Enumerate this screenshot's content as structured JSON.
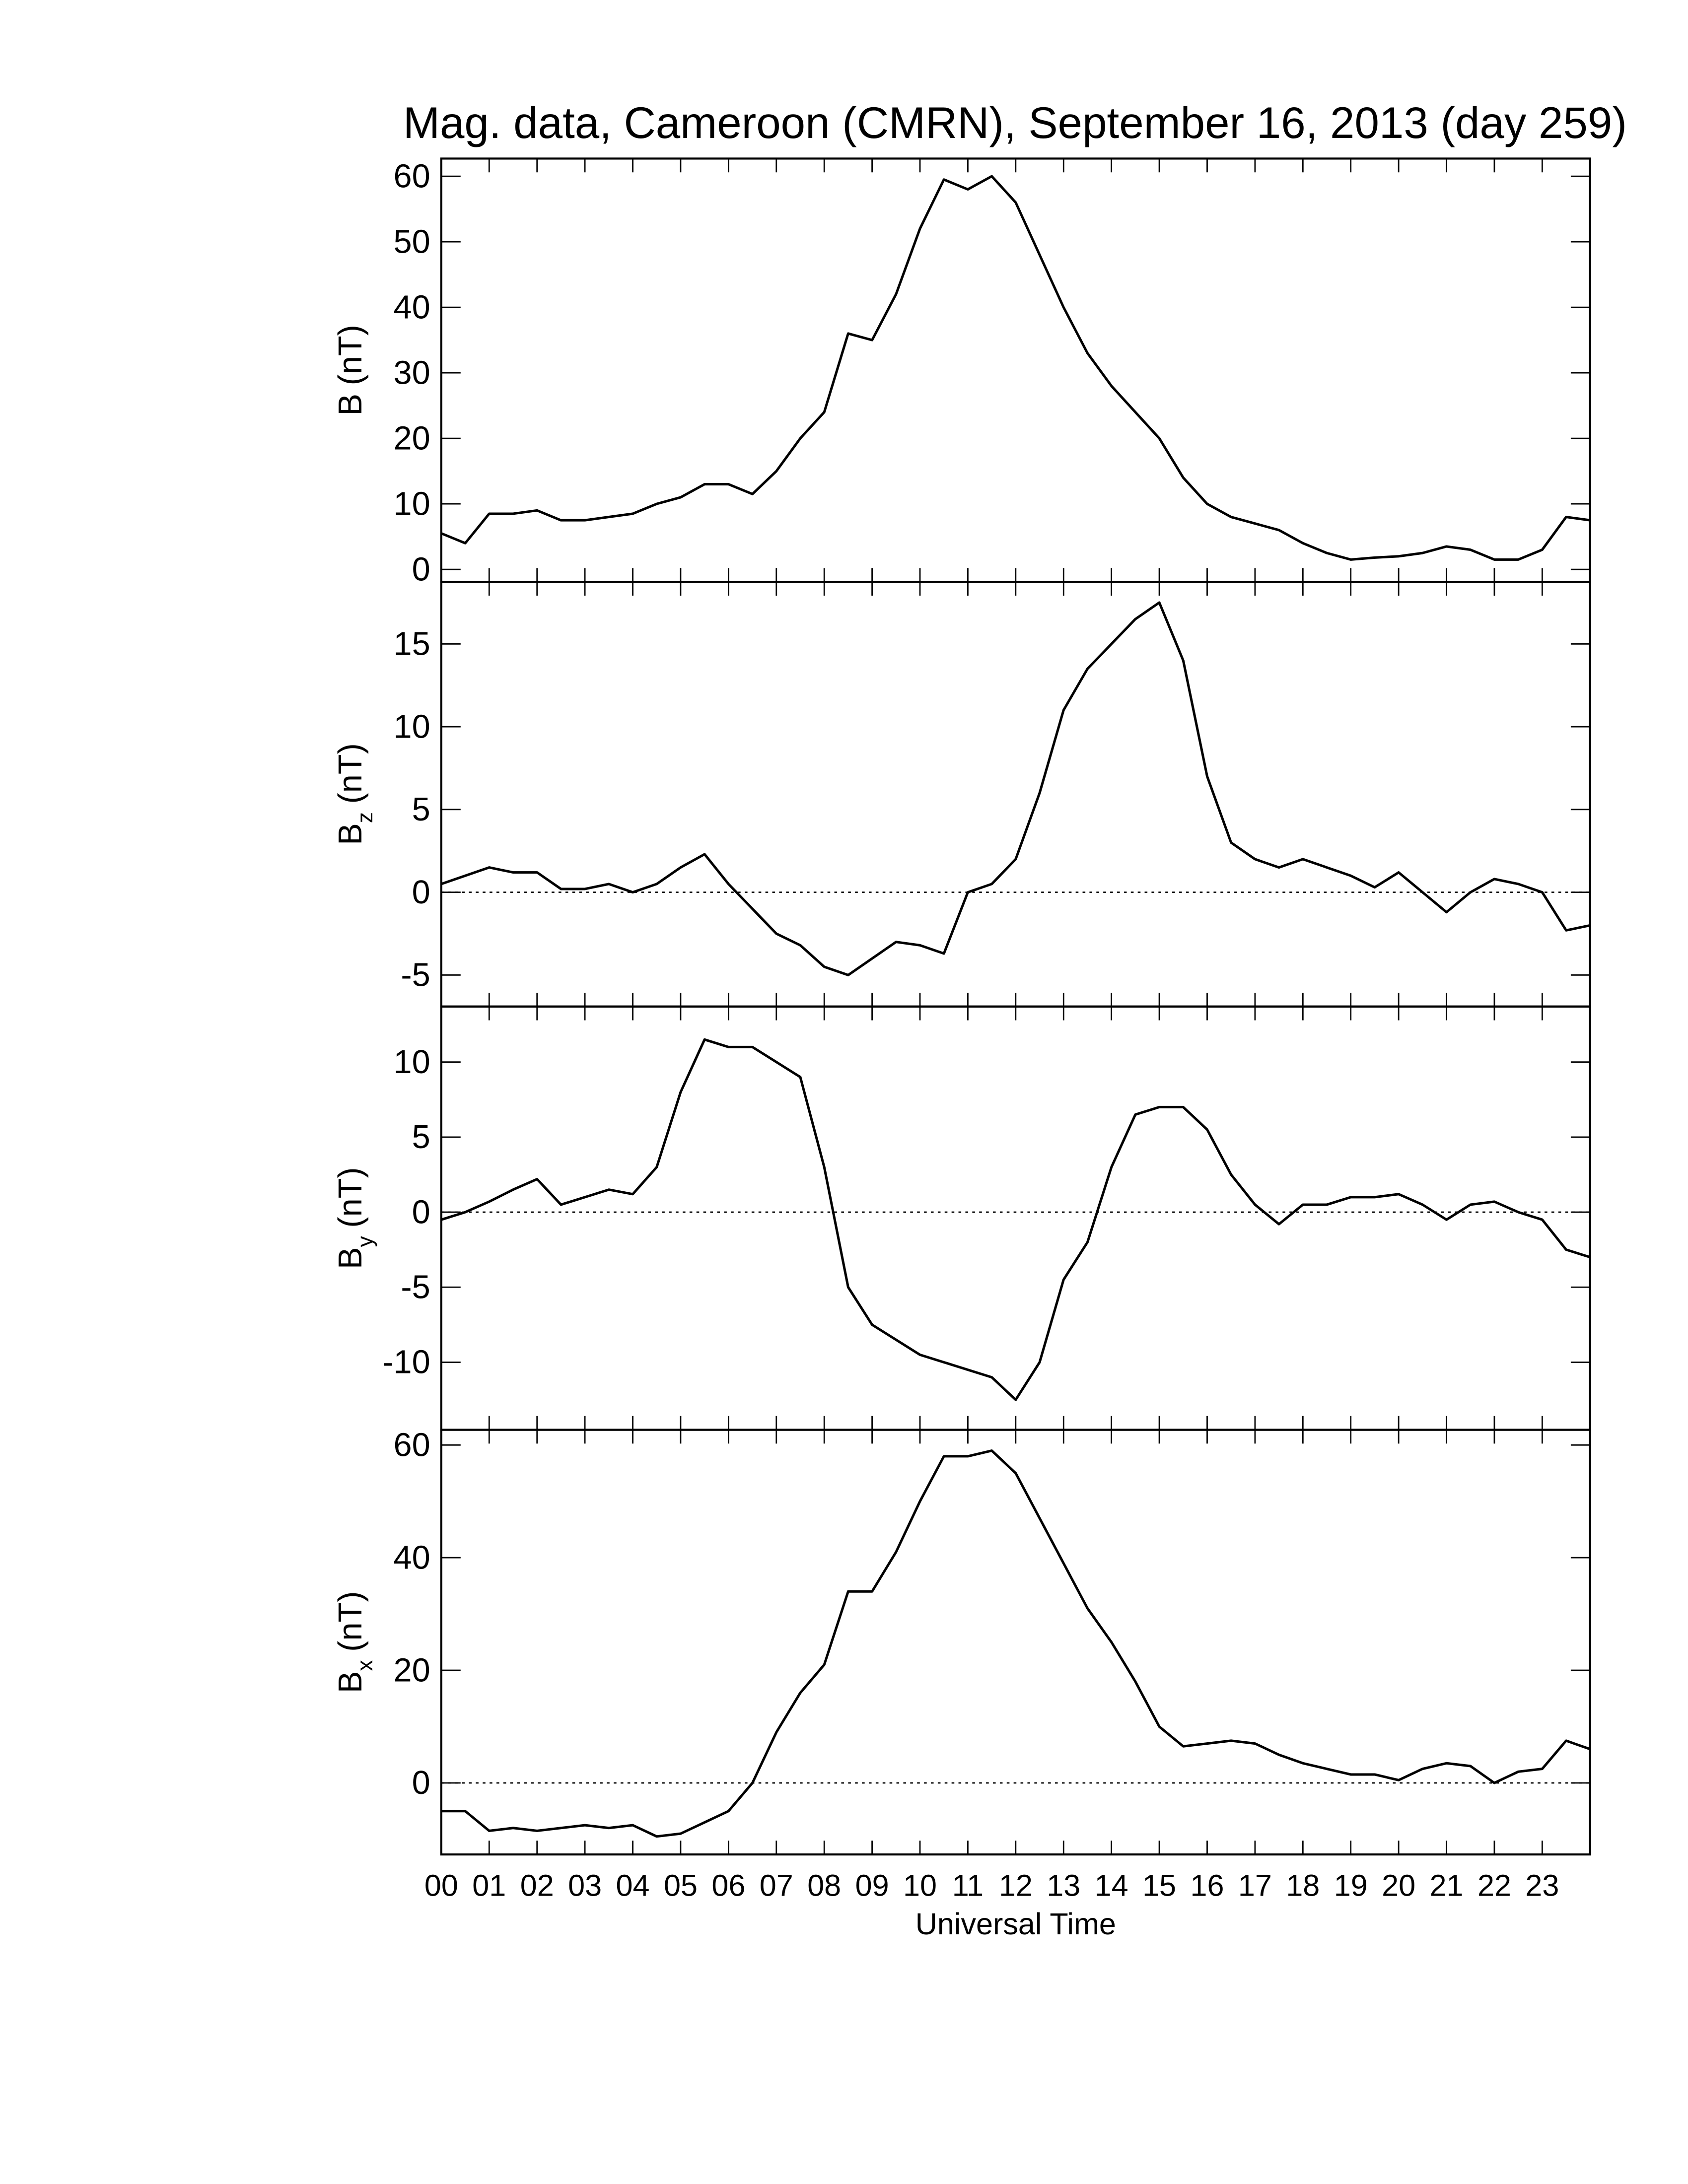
{
  "chart_data": [
    {
      "type": "line",
      "title": "Mag. data, Cameroon (CMRN), September 16, 2013 (day 259)",
      "ylabel": "B",
      "ylabel_unit": "(nT)",
      "x": [
        0,
        0.5,
        1,
        1.5,
        2,
        2.5,
        3,
        3.5,
        4,
        4.5,
        5,
        5.5,
        6,
        6.5,
        7,
        7.5,
        8,
        8.5,
        9,
        9.5,
        10,
        10.5,
        11,
        11.5,
        12,
        12.5,
        13,
        13.5,
        14,
        14.5,
        15,
        15.5,
        16,
        16.5,
        17,
        17.5,
        18,
        18.5,
        19,
        19.5,
        20,
        20.5,
        21,
        21.5,
        22,
        22.5,
        23,
        23.5,
        24
      ],
      "series": [
        {
          "color": "#000000",
          "values": [
            5.5,
            4,
            8.5,
            8.5,
            9,
            7.5,
            7.5,
            8,
            8.5,
            10,
            11,
            13,
            13,
            11.5,
            15,
            20,
            24,
            36,
            35,
            42,
            52,
            59.5,
            58,
            60,
            56,
            48,
            40,
            33,
            28,
            24,
            20,
            14,
            10,
            8,
            7,
            6,
            4,
            2.5,
            1.5,
            1.8,
            2,
            2.5,
            3.5,
            3,
            1.5,
            1.5,
            3,
            8,
            7.5
          ]
        }
      ],
      "xlim": [
        0,
        24
      ],
      "xticks": [
        0,
        1,
        2,
        3,
        4,
        5,
        6,
        7,
        8,
        9,
        10,
        11,
        12,
        13,
        14,
        15,
        16,
        17,
        18,
        19,
        20,
        21,
        22,
        23
      ],
      "ylim": [
        -1.9,
        62.7
      ],
      "yticks": [
        0,
        10,
        20,
        30,
        40,
        50,
        60
      ],
      "zero_line": false
    },
    {
      "type": "line",
      "ylabel": "B",
      "ylabel_subscript": "z",
      "ylabel_unit": "(nT)",
      "x": [
        0,
        0.5,
        1,
        1.5,
        2,
        2.5,
        3,
        3.5,
        4,
        4.5,
        5,
        5.5,
        6,
        6.5,
        7,
        7.5,
        8,
        8.5,
        9,
        9.5,
        10,
        10.5,
        11,
        11.5,
        12,
        12.5,
        13,
        13.5,
        14,
        14.5,
        15,
        15.5,
        16,
        16.5,
        17,
        17.5,
        18,
        18.5,
        19,
        19.5,
        20,
        20.5,
        21,
        21.5,
        22,
        22.5,
        23,
        23.5,
        24
      ],
      "series": [
        {
          "color": "#000000",
          "values": [
            0.5,
            1,
            1.5,
            1.2,
            1.2,
            0.2,
            0.2,
            0.5,
            0,
            0.5,
            1.5,
            2.3,
            0.5,
            -1,
            -2.5,
            -3.2,
            -4.5,
            -5,
            -4,
            -3,
            -3.2,
            -3.7,
            0,
            0.5,
            2,
            6,
            11,
            13.5,
            15,
            16.5,
            17.5,
            14,
            7,
            3,
            2,
            1.5,
            2,
            1.5,
            1,
            0.3,
            1.2,
            0,
            -1.2,
            0,
            0.8,
            0.5,
            0,
            -2.3,
            -2
          ]
        }
      ],
      "xlim": [
        0,
        24
      ],
      "xticks": [
        0,
        1,
        2,
        3,
        4,
        5,
        6,
        7,
        8,
        9,
        10,
        11,
        12,
        13,
        14,
        15,
        16,
        17,
        18,
        19,
        20,
        21,
        22,
        23
      ],
      "ylim": [
        -6.9,
        18.75
      ],
      "yticks": [
        -5,
        0,
        5,
        10,
        15
      ],
      "zero_line": true
    },
    {
      "type": "line",
      "ylabel": "B",
      "ylabel_subscript": "y",
      "ylabel_unit": "(nT)",
      "x": [
        0,
        0.5,
        1,
        1.5,
        2,
        2.5,
        3,
        3.5,
        4,
        4.5,
        5,
        5.5,
        6,
        6.5,
        7,
        7.5,
        8,
        8.5,
        9,
        9.5,
        10,
        10.5,
        11,
        11.5,
        12,
        12.5,
        13,
        13.5,
        14,
        14.5,
        15,
        15.5,
        16,
        16.5,
        17,
        17.5,
        18,
        18.5,
        19,
        19.5,
        20,
        20.5,
        21,
        21.5,
        22,
        22.5,
        23,
        23.5,
        24
      ],
      "series": [
        {
          "color": "#000000",
          "values": [
            -0.5,
            0,
            0.7,
            1.5,
            2.2,
            0.5,
            1,
            1.5,
            1.2,
            3,
            8,
            11.5,
            11,
            11,
            10,
            9,
            3,
            -5,
            -7.5,
            -8.5,
            -9.5,
            -10,
            -10.5,
            -11,
            -12.5,
            -10,
            -4.5,
            -2,
            3,
            6.5,
            7,
            7,
            5.5,
            2.5,
            0.5,
            -0.8,
            0.5,
            0.5,
            1,
            1,
            1.2,
            0.5,
            -0.5,
            0.5,
            0.7,
            0,
            -0.5,
            -2.5,
            -3
          ]
        }
      ],
      "xlim": [
        0,
        24
      ],
      "xticks": [
        0,
        1,
        2,
        3,
        4,
        5,
        6,
        7,
        8,
        9,
        10,
        11,
        12,
        13,
        14,
        15,
        16,
        17,
        18,
        19,
        20,
        21,
        22,
        23
      ],
      "ylim": [
        -14.5,
        13.7
      ],
      "yticks": [
        -10,
        -5,
        0,
        5,
        10
      ],
      "zero_line": true
    },
    {
      "type": "line",
      "ylabel": "B",
      "ylabel_subscript": "x",
      "ylabel_unit": "(nT)",
      "xlabel": "Universal Time",
      "x": [
        0,
        0.5,
        1,
        1.5,
        2,
        2.5,
        3,
        3.5,
        4,
        4.5,
        5,
        5.5,
        6,
        6.5,
        7,
        7.5,
        8,
        8.5,
        9,
        9.5,
        10,
        10.5,
        11,
        11.5,
        12,
        12.5,
        13,
        13.5,
        14,
        14.5,
        15,
        15.5,
        16,
        16.5,
        17,
        17.5,
        18,
        18.5,
        19,
        19.5,
        20,
        20.5,
        21,
        21.5,
        22,
        22.5,
        23,
        23.5,
        24
      ],
      "series": [
        {
          "color": "#000000",
          "values": [
            -5,
            -5,
            -8.5,
            -8,
            -8.5,
            -8,
            -7.5,
            -8,
            -7.5,
            -9.5,
            -9,
            -7,
            -5,
            0,
            9,
            16,
            21,
            34,
            34,
            41,
            50,
            58,
            58,
            59,
            55,
            47,
            39,
            31,
            25,
            18,
            10,
            6.5,
            7,
            7.5,
            7,
            5,
            3.5,
            2.5,
            1.5,
            1.5,
            0.5,
            2.5,
            3.5,
            3,
            0,
            2,
            2.5,
            7.5,
            6
          ]
        }
      ],
      "xlim": [
        0,
        24
      ],
      "xticks": [
        {
          "value": 0,
          "label": "00"
        },
        {
          "value": 1,
          "label": "01"
        },
        {
          "value": 2,
          "label": "02"
        },
        {
          "value": 3,
          "label": "03"
        },
        {
          "value": 4,
          "label": "04"
        },
        {
          "value": 5,
          "label": "05"
        },
        {
          "value": 6,
          "label": "06"
        },
        {
          "value": 7,
          "label": "07"
        },
        {
          "value": 8,
          "label": "08"
        },
        {
          "value": 9,
          "label": "09"
        },
        {
          "value": 10,
          "label": "10"
        },
        {
          "value": 11,
          "label": "11"
        },
        {
          "value": 12,
          "label": "12"
        },
        {
          "value": 13,
          "label": "13"
        },
        {
          "value": 14,
          "label": "14"
        },
        {
          "value": 15,
          "label": "15"
        },
        {
          "value": 16,
          "label": "16"
        },
        {
          "value": 17,
          "label": "17"
        },
        {
          "value": 18,
          "label": "18"
        },
        {
          "value": 19,
          "label": "19"
        },
        {
          "value": 20,
          "label": "20"
        },
        {
          "value": 21,
          "label": "21"
        },
        {
          "value": 22,
          "label": "22"
        },
        {
          "value": 23,
          "label": "23"
        }
      ],
      "ylim": [
        -12.7,
        62.7
      ],
      "yticks": [
        0,
        20,
        40,
        60
      ],
      "zero_line": true
    }
  ]
}
